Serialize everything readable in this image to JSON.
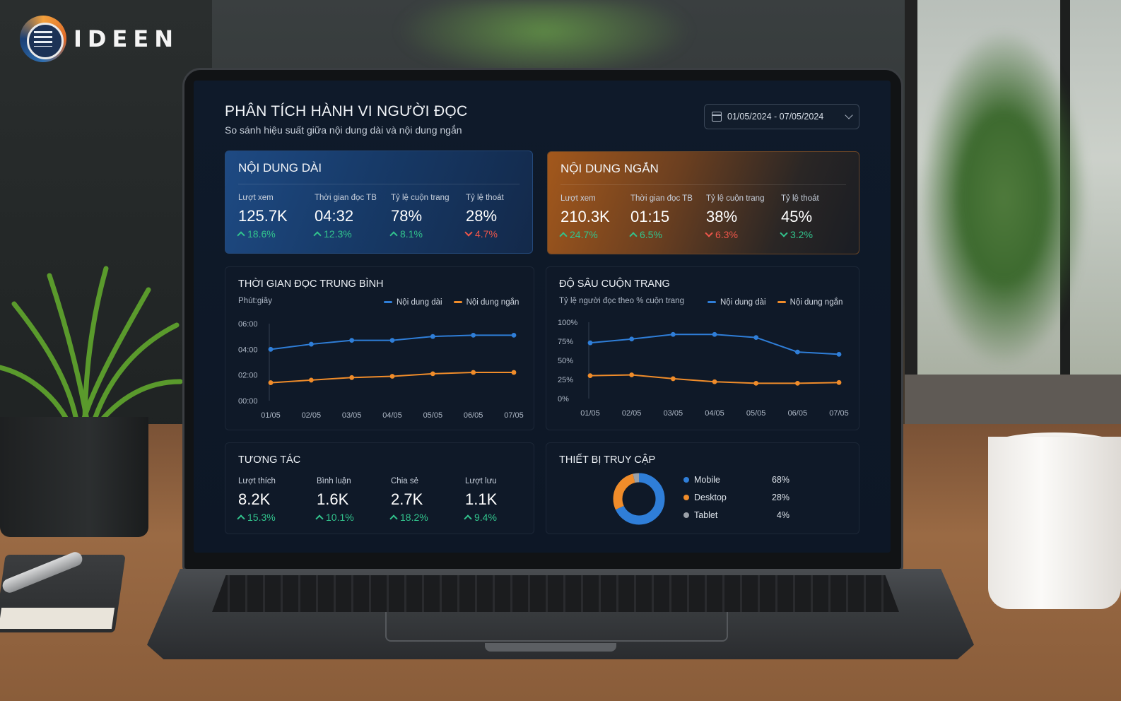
{
  "brand": {
    "logo_text": "IDEEN"
  },
  "dashboard": {
    "title": "PHÂN TÍCH HÀNH VI NGƯỜI ĐỌC",
    "subtitle": "So sánh hiệu suất giữa nội dung dài và nội dung ngắn",
    "date_range": "01/05/2024 - 07/05/2024"
  },
  "long_content": {
    "title": "NỘI DUNG DÀI",
    "metrics": [
      {
        "label": "Lượt xem",
        "value": "125.7K",
        "change": "18.6%",
        "direction": "up"
      },
      {
        "label": "Thời gian đọc TB",
        "value": "04:32",
        "change": "12.3%",
        "direction": "up"
      },
      {
        "label": "Tỷ lệ cuộn trang",
        "value": "78%",
        "change": "8.1%",
        "direction": "up"
      },
      {
        "label": "Tỷ lệ thoát",
        "value": "28%",
        "change": "4.7%",
        "direction": "down"
      }
    ]
  },
  "short_content": {
    "title": "NỘI DUNG NGẮN",
    "metrics": [
      {
        "label": "Lượt xem",
        "value": "210.3K",
        "change": "24.7%",
        "direction": "up"
      },
      {
        "label": "Thời gian đọc TB",
        "value": "01:15",
        "change": "6.5%",
        "direction": "up"
      },
      {
        "label": "Tỷ lệ cuộn trang",
        "value": "38%",
        "change": "6.3%",
        "direction": "down"
      },
      {
        "label": "Tỷ lệ thoát",
        "value": "45%",
        "change": "3.2%",
        "direction": "up"
      }
    ]
  },
  "engagement": {
    "title": "TƯƠNG TÁC",
    "metrics": [
      {
        "label": "Lượt thích",
        "value": "8.2K",
        "change": "15.3%",
        "direction": "up"
      },
      {
        "label": "Bình luận",
        "value": "1.6K",
        "change": "10.1%",
        "direction": "up"
      },
      {
        "label": "Chia sẻ",
        "value": "2.7K",
        "change": "18.2%",
        "direction": "up"
      },
      {
        "label": "Lượt lưu",
        "value": "1.1K",
        "change": "9.4%",
        "direction": "up"
      }
    ]
  },
  "devices": {
    "title": "THIẾT BỊ TRUY CẬP",
    "items": [
      {
        "name": "Mobile",
        "pct": "68%",
        "value": 68,
        "color": "#2f7ed8"
      },
      {
        "name": "Desktop",
        "pct": "28%",
        "value": 28,
        "color": "#f08c2a"
      },
      {
        "name": "Tablet",
        "pct": "4%",
        "value": 4,
        "color": "#9aa0a8"
      }
    ]
  },
  "colors": {
    "long": "#2f7ed8",
    "short": "#f08c2a",
    "up": "#32c48d",
    "down": "#f0564a"
  },
  "chart_data": [
    {
      "type": "line",
      "title": "THỜI GIAN ĐỌC TRUNG BÌNH",
      "subtitle": "Phút:giây",
      "categories": [
        "01/05",
        "02/05",
        "03/05",
        "04/05",
        "05/05",
        "06/05",
        "07/05"
      ],
      "y_ticks": [
        "06:00",
        "04:00",
        "02:00",
        "00:00"
      ],
      "ylim_minutes": [
        0,
        6
      ],
      "legend_position": "top-right",
      "series": [
        {
          "name": "Nội dung dài",
          "values_minutes": [
            4.0,
            4.4,
            4.7,
            4.7,
            5.0,
            5.1,
            5.1
          ]
        },
        {
          "name": "Nội dung ngắn",
          "values_minutes": [
            1.4,
            1.6,
            1.8,
            1.9,
            2.1,
            2.2,
            2.2
          ]
        }
      ]
    },
    {
      "type": "line",
      "title": "ĐỘ SÂU CUỘN TRANG",
      "subtitle": "Tỷ lệ người đọc theo % cuộn trang",
      "categories": [
        "01/05",
        "02/05",
        "03/05",
        "04/05",
        "05/05",
        "06/05",
        "07/05"
      ],
      "y_ticks": [
        "100%",
        "75%",
        "50%",
        "25%",
        "0%"
      ],
      "ylim": [
        0,
        100
      ],
      "legend_position": "top-right",
      "series": [
        {
          "name": "Nội dung dài",
          "values": [
            73,
            78,
            84,
            84,
            80,
            61,
            58
          ]
        },
        {
          "name": "Nội dung ngắn",
          "values": [
            30,
            31,
            26,
            22,
            20,
            20,
            21
          ]
        }
      ]
    }
  ]
}
